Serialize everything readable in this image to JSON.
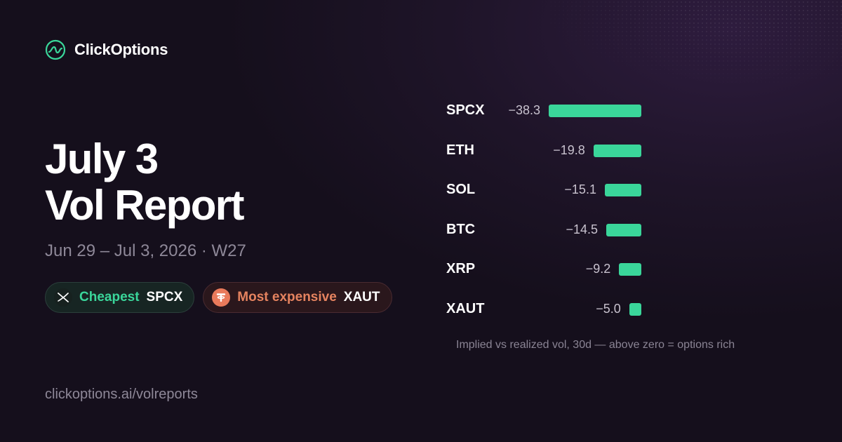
{
  "brand": {
    "name": "ClickOptions",
    "logo_icon": "wave-circle-icon",
    "accent": "#3ad69a"
  },
  "report": {
    "title_line1": "July 3",
    "title_line2": "Vol Report",
    "subtitle": "Jun 29 – Jul 3, 2026 · W27"
  },
  "badges": {
    "cheapest": {
      "label": "Cheapest",
      "ticker": "SPCX",
      "icon": "x-logo-icon",
      "color": "#3ad69a"
    },
    "most_expensive": {
      "label": "Most expensive",
      "ticker": "XAUT",
      "icon": "tether-gold-icon",
      "color": "#e5835f"
    }
  },
  "chart_data": {
    "type": "bar",
    "orientation": "horizontal",
    "categories": [
      "SPCX",
      "ETH",
      "SOL",
      "BTC",
      "XRP",
      "XAUT"
    ],
    "values": [
      -38.3,
      -19.8,
      -15.1,
      -14.5,
      -9.2,
      -5.0
    ],
    "value_labels": [
      "−38.3",
      "−19.8",
      "−15.1",
      "−14.5",
      "−9.2",
      "−5.0"
    ],
    "bar_color": "#3ad69a",
    "caption": "Implied vs realized vol, 30d — above zero = options rich"
  },
  "footer": {
    "url": "clickoptions.ai/volreports"
  }
}
